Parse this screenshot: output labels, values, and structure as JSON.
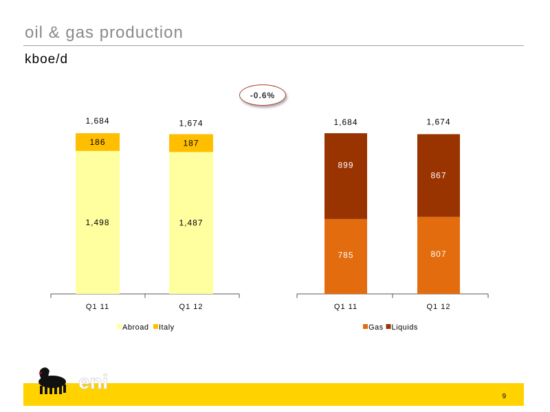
{
  "title": "oil & gas production",
  "unit": "kboe/d",
  "change_badge": "-0.6%",
  "page_number": "9",
  "logo_text": "eni",
  "colors": {
    "abroad": "#ffffa0",
    "italy": "#ffbe00",
    "gas": "#e26c0e",
    "liquids": "#993300",
    "footer": "#ffd200"
  },
  "chart_data": [
    {
      "type": "bar",
      "stacked": true,
      "categories": [
        "Q1 11",
        "Q1 12"
      ],
      "series": [
        {
          "name": "Abroad",
          "values": [
            1498,
            1487
          ],
          "labels": [
            "1,498",
            "1,487"
          ],
          "color": "#ffffa0"
        },
        {
          "name": "Italy",
          "values": [
            186,
            187
          ],
          "labels": [
            "186",
            "187"
          ],
          "color": "#ffbe00"
        }
      ],
      "totals": [
        1684,
        1674
      ],
      "total_labels": [
        "1,684",
        "1,674"
      ],
      "legend_position": "bottom",
      "grid": false
    },
    {
      "type": "bar",
      "stacked": true,
      "categories": [
        "Q1 11",
        "Q1 12"
      ],
      "series": [
        {
          "name": "Gas",
          "values": [
            785,
            807
          ],
          "labels": [
            "785",
            "807"
          ],
          "color": "#e26c0e"
        },
        {
          "name": "Liquids",
          "values": [
            899,
            867
          ],
          "labels": [
            "899",
            "867"
          ],
          "color": "#993300"
        }
      ],
      "totals": [
        1684,
        1674
      ],
      "total_labels": [
        "1,684",
        "1,674"
      ],
      "legend_position": "bottom",
      "grid": false
    }
  ]
}
